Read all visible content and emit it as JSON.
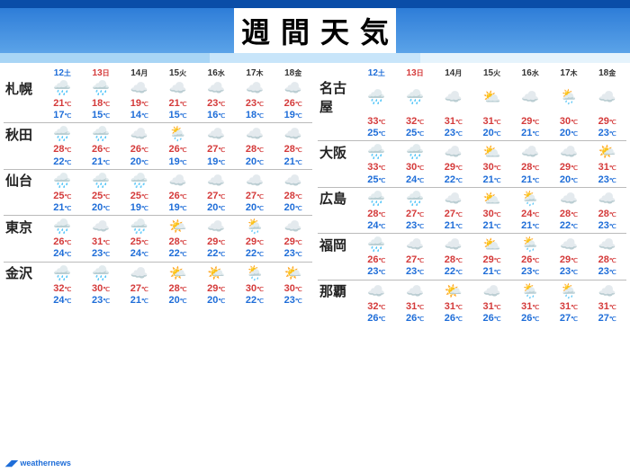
{
  "title": [
    "週",
    "間",
    "天",
    "気"
  ],
  "footer": "weathernews",
  "days": [
    {
      "d": "12",
      "w": "土",
      "cls": "day-sat"
    },
    {
      "d": "13",
      "w": "日",
      "cls": "day-sun"
    },
    {
      "d": "14",
      "w": "月",
      "cls": "day-wk"
    },
    {
      "d": "15",
      "w": "火",
      "cls": "day-wk"
    },
    {
      "d": "16",
      "w": "水",
      "cls": "day-wk"
    },
    {
      "d": "17",
      "w": "木",
      "cls": "day-wk"
    },
    {
      "d": "18",
      "w": "金",
      "cls": "day-wk"
    }
  ],
  "icons": {
    "rain": "🌧️",
    "cloud": "☁️",
    "rain-cloud": "🌧️",
    "cloud-rain": "🌦️",
    "sun-cloud": "⛅",
    "cloud-sun": "🌤️",
    "sun": "☀️",
    "heavy-rain": "🌧️"
  },
  "left": [
    {
      "name": "札幌",
      "w": [
        "rain-cloud",
        "rain-cloud",
        "cloud",
        "cloud",
        "cloud",
        "cloud",
        "cloud"
      ],
      "hi": [
        21,
        18,
        19,
        21,
        23,
        23,
        26
      ],
      "lo": [
        17,
        15,
        14,
        15,
        16,
        18,
        19
      ]
    },
    {
      "name": "秋田",
      "w": [
        "rain-cloud",
        "rain-cloud",
        "cloud",
        "cloud-rain",
        "cloud",
        "cloud",
        "cloud"
      ],
      "hi": [
        28,
        26,
        26,
        26,
        27,
        28,
        28
      ],
      "lo": [
        22,
        21,
        20,
        19,
        19,
        20,
        21
      ]
    },
    {
      "name": "仙台",
      "w": [
        "heavy-rain",
        "rain-cloud",
        "rain-cloud",
        "cloud",
        "cloud",
        "cloud",
        "cloud"
      ],
      "hi": [
        25,
        25,
        25,
        26,
        27,
        27,
        28
      ],
      "lo": [
        21,
        20,
        19,
        19,
        20,
        20,
        20
      ]
    },
    {
      "name": "東京",
      "w": [
        "rain-cloud",
        "cloud",
        "rain-cloud",
        "cloud-sun",
        "cloud",
        "cloud-rain",
        "cloud"
      ],
      "hi": [
        26,
        31,
        25,
        28,
        29,
        29,
        29
      ],
      "lo": [
        24,
        23,
        24,
        22,
        22,
        22,
        23
      ]
    },
    {
      "name": "金沢",
      "w": [
        "rain-cloud",
        "rain-cloud",
        "cloud",
        "cloud-sun",
        "cloud-sun",
        "cloud-rain",
        "cloud-sun"
      ],
      "hi": [
        32,
        30,
        27,
        28,
        29,
        30,
        30
      ],
      "lo": [
        24,
        23,
        21,
        20,
        20,
        22,
        23
      ]
    }
  ],
  "right": [
    {
      "name": "名古屋",
      "w": [
        "rain-cloud",
        "rain-cloud",
        "cloud",
        "sun-cloud",
        "cloud",
        "cloud-rain",
        "cloud"
      ],
      "hi": [
        33,
        32,
        31,
        31,
        29,
        30,
        29
      ],
      "lo": [
        25,
        25,
        23,
        20,
        21,
        20,
        23
      ]
    },
    {
      "name": "大阪",
      "w": [
        "rain-cloud",
        "rain-cloud",
        "cloud",
        "sun-cloud",
        "cloud",
        "cloud",
        "cloud-sun"
      ],
      "hi": [
        33,
        30,
        29,
        30,
        28,
        29,
        31
      ],
      "lo": [
        25,
        24,
        22,
        21,
        21,
        20,
        23
      ]
    },
    {
      "name": "広島",
      "w": [
        "rain-cloud",
        "rain-cloud",
        "cloud",
        "sun-cloud",
        "cloud-rain",
        "cloud",
        "cloud"
      ],
      "hi": [
        28,
        27,
        27,
        30,
        24,
        28,
        28
      ],
      "lo": [
        24,
        23,
        21,
        21,
        21,
        22,
        23
      ]
    },
    {
      "name": "福岡",
      "w": [
        "heavy-rain",
        "cloud",
        "cloud",
        "sun-cloud",
        "cloud-rain",
        "cloud",
        "cloud"
      ],
      "hi": [
        26,
        27,
        28,
        29,
        26,
        29,
        28
      ],
      "lo": [
        23,
        23,
        22,
        21,
        23,
        23,
        23
      ]
    },
    {
      "name": "那覇",
      "w": [
        "cloud",
        "cloud",
        "cloud-sun",
        "cloud",
        "cloud-rain",
        "cloud-rain",
        "cloud"
      ],
      "hi": [
        32,
        31,
        31,
        31,
        31,
        31,
        31
      ],
      "lo": [
        26,
        26,
        26,
        26,
        26,
        27,
        27
      ]
    }
  ],
  "colors": {
    "header_top": "#0a4da8",
    "header_grad_a": "#2e7dd8",
    "header_grad_b": "#5ba3e8",
    "hi": "#d43a3a",
    "lo": "#1e6dd8",
    "border": "#bbb"
  }
}
